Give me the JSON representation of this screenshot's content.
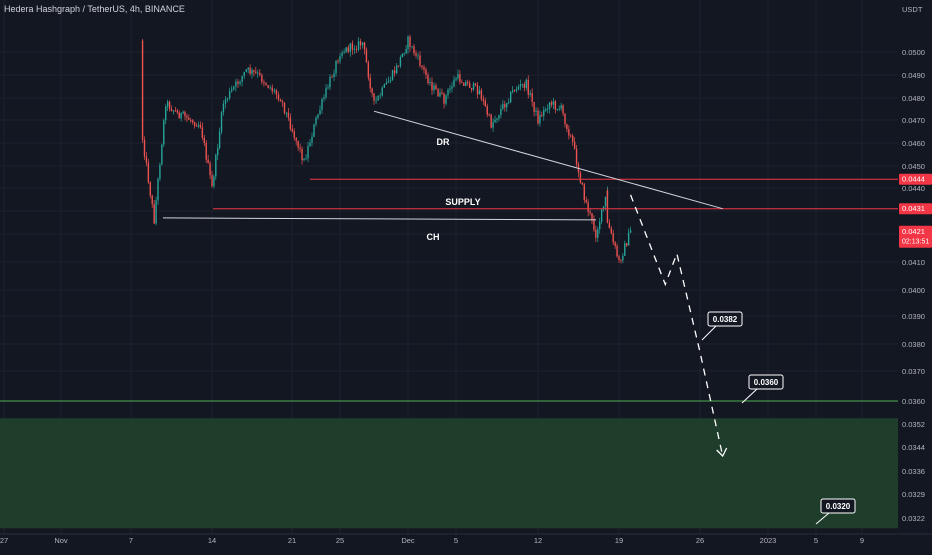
{
  "symbol_title": "Hedera Hashgraph / TetherUS, 4h, BINANCE",
  "currency": "USDT",
  "colors": {
    "background": "#131722",
    "grid": "#1e222d",
    "axis_text": "#b2b5be",
    "up_candle": "#26a69a",
    "down_candle": "#ef5350",
    "supply_line": "#f23645",
    "trend_line": "#d1d4dc",
    "target_line": "#4caf50",
    "target_zone": "#1f3d2b",
    "price_tag": "#f23645"
  },
  "price_labels": {
    "supply_top": "0.0444",
    "supply_bottom": "0.0431",
    "current_price": "0.0421",
    "countdown": "02:13:51"
  },
  "annotations": {
    "dr": "DR",
    "supply": "SUPPLY",
    "ch": "CH",
    "target_1": "0.0382",
    "target_2": "0.0360",
    "target_3": "0.0320"
  },
  "chart_data": {
    "type": "candlestick",
    "ylim": [
      0.0319,
      0.0512
    ],
    "y_scale": "non-linear",
    "y_ticks": [
      "0.0500",
      "0.0490",
      "0.0480",
      "0.0470",
      "0.0460",
      "0.0450",
      "0.0440",
      "0.0430",
      "0.0420",
      "0.0410",
      "0.0400",
      "0.0390",
      "0.0380",
      "0.0370",
      "0.0360",
      "0.0352",
      "0.0344",
      "0.0336",
      "0.0329",
      "0.0322"
    ],
    "x_ticks": [
      "27",
      "Nov",
      "7",
      "14",
      "21",
      "25",
      "Dec",
      "5",
      "12",
      "19",
      "26",
      "2023",
      "5",
      "9"
    ],
    "price_path": [
      {
        "date": "Nov 8",
        "price": 0.0505
      },
      {
        "date": "Nov 8",
        "price": 0.0462
      },
      {
        "date": "Nov 9",
        "price": 0.0426
      },
      {
        "date": "Nov 10",
        "price": 0.0478
      },
      {
        "date": "Nov 11",
        "price": 0.0473
      },
      {
        "date": "Nov 13",
        "price": 0.0468
      },
      {
        "date": "Nov 14",
        "price": 0.044
      },
      {
        "date": "Nov 15",
        "price": 0.0478
      },
      {
        "date": "Nov 17",
        "price": 0.0492
      },
      {
        "date": "Nov 18",
        "price": 0.049
      },
      {
        "date": "Nov 20",
        "price": 0.048
      },
      {
        "date": "Nov 22",
        "price": 0.0452
      },
      {
        "date": "Nov 23",
        "price": 0.047
      },
      {
        "date": "Nov 25",
        "price": 0.05
      },
      {
        "date": "Nov 27",
        "price": 0.0504
      },
      {
        "date": "Nov 28",
        "price": 0.0477
      },
      {
        "date": "Nov 30",
        "price": 0.0493
      },
      {
        "date": "Dec 1",
        "price": 0.0505
      },
      {
        "date": "Dec 3",
        "price": 0.0485
      },
      {
        "date": "Dec 4",
        "price": 0.0479
      },
      {
        "date": "Dec 5",
        "price": 0.0489
      },
      {
        "date": "Dec 7",
        "price": 0.0483
      },
      {
        "date": "Dec 8",
        "price": 0.0468
      },
      {
        "date": "Dec 10",
        "price": 0.0484
      },
      {
        "date": "Dec 11",
        "price": 0.0486
      },
      {
        "date": "Dec 12",
        "price": 0.047
      },
      {
        "date": "Dec 13",
        "price": 0.0478
      },
      {
        "date": "Dec 14",
        "price": 0.0475
      },
      {
        "date": "Dec 15",
        "price": 0.046
      },
      {
        "date": "Dec 16",
        "price": 0.0436
      },
      {
        "date": "Dec 17",
        "price": 0.042
      },
      {
        "date": "Dec 18",
        "price": 0.0438
      },
      {
        "date": "Dec 18",
        "price": 0.0425
      },
      {
        "date": "Dec 19",
        "price": 0.041
      },
      {
        "date": "Dec 20",
        "price": 0.0421
      }
    ],
    "levels": [
      {
        "name": "SUPPLY top",
        "price": 0.0444
      },
      {
        "name": "SUPPLY bottom",
        "price": 0.0431
      },
      {
        "name": "CH",
        "price": 0.0427
      },
      {
        "name": "target",
        "price": 0.036
      }
    ],
    "target_zone": [
      0.0319,
      0.0354
    ],
    "trendline_DR": [
      {
        "date": "Nov 28",
        "price": 0.0474
      },
      {
        "date": "Dec 28",
        "price": 0.0431
      }
    ],
    "projection_path": [
      {
        "date": "Dec 20",
        "price": 0.0437
      },
      {
        "date": "Dec 23",
        "price": 0.0402
      },
      {
        "date": "Dec 24",
        "price": 0.0413
      },
      {
        "date": "Dec 26",
        "price": 0.0377
      },
      {
        "date": "Dec 28",
        "price": 0.0341
      }
    ],
    "current_price": 0.0421
  }
}
